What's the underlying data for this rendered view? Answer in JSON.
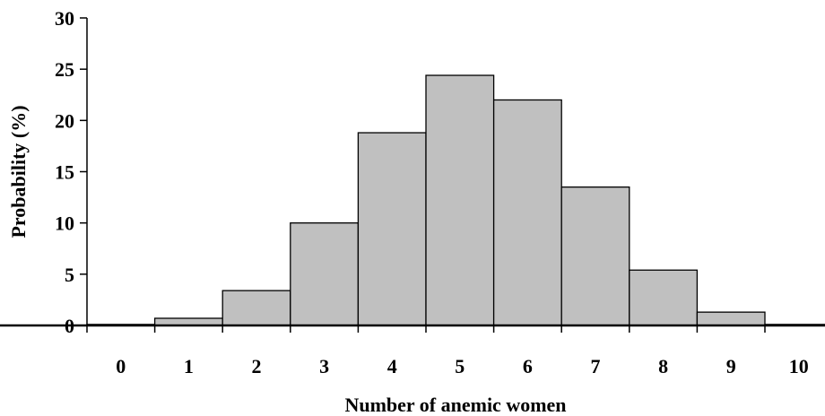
{
  "chart_data": {
    "type": "bar",
    "categories": [
      "0",
      "1",
      "2",
      "3",
      "4",
      "5",
      "6",
      "7",
      "8",
      "9",
      "10"
    ],
    "values": [
      0.1,
      0.7,
      3.4,
      10.0,
      18.8,
      24.4,
      22.0,
      13.5,
      5.4,
      1.3,
      0.1
    ],
    "title": "",
    "xlabel": "Number of anemic women",
    "ylabel": "Probability (%)",
    "ylim": [
      0,
      30
    ],
    "yticks": [
      "0",
      "5",
      "10",
      "15",
      "20",
      "25",
      "30"
    ],
    "grid": false,
    "legend": "none",
    "colors": {
      "bar_fill": "#c0c0c0",
      "bar_stroke": "#000000",
      "axis": "#000000"
    }
  }
}
